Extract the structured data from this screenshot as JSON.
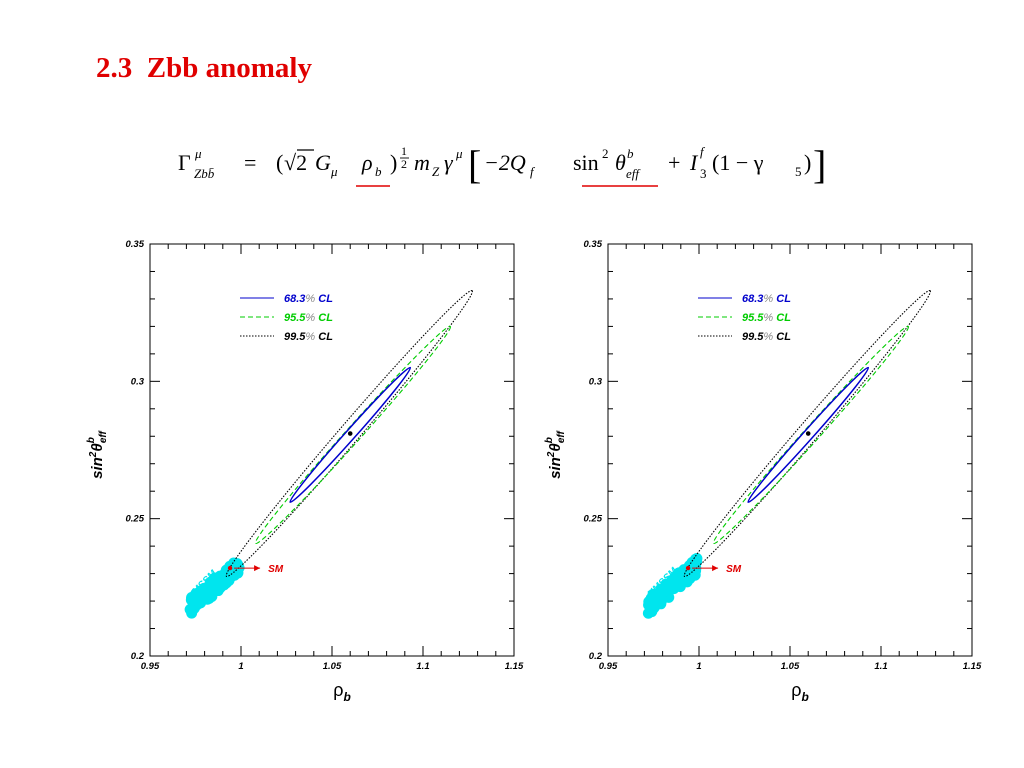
{
  "slide": {
    "title": "2.3  Zbb anomaly"
  },
  "equation": {
    "lhs": "Γ",
    "lhs_sup": "μ",
    "lhs_sub": "Zbb̄",
    "equals": "=",
    "open": "(",
    "sqrt": "√2",
    "G": "G",
    "G_sub": "μ",
    "rho": "ρ",
    "rho_sub": "b",
    "close": ")",
    "exp_num": "1",
    "exp_den": "2",
    "mZ": "m",
    "mZ_sub": "Z",
    "gamma": "γ",
    "gamma_sup": "μ",
    "lbracket": "[",
    "term1": "−2Q",
    "term1_sub": "f",
    "sin": "sin",
    "sin_sup": "2",
    "theta": "θ",
    "theta_sup": "b",
    "theta_sub": "eff",
    "plus": "+",
    "I": "I",
    "I_sup": "f",
    "I_sub": "3",
    "tail": "(1 − γ",
    "tail_sub": "5",
    "tail_close": ")",
    "rbracket": "]",
    "underline_color": "#e00000"
  },
  "colors": {
    "cl68": "#0000cc",
    "cl955": "#00cc00",
    "cl995": "#000000",
    "susy": "#00e5ee",
    "sm": "#e00000"
  },
  "chart_data": [
    {
      "type": "scatter",
      "xlabel": "ρ",
      "xlabel_sub": "b",
      "ylabel": "sin",
      "ylabel_sup": "2",
      "ylabel_theta": "θ",
      "ylabel_theta_sup": "b",
      "ylabel_theta_sub": "eff",
      "xlim": [
        0.95,
        1.15
      ],
      "ylim": [
        0.2,
        0.35
      ],
      "x_ticks": [
        "0.95",
        "1",
        "1.05",
        "1.1",
        "1.15"
      ],
      "y_ticks": [
        "0.2",
        "0.25",
        "0.3",
        "0.35"
      ],
      "legend_position": "top-left",
      "legend": [
        {
          "num": "68.3",
          "pct": "%",
          "cl": "CL",
          "color": "#0000cc",
          "style": "solid"
        },
        {
          "num": "95.5",
          "pct": "%",
          "cl": "CL",
          "color": "#00cc00",
          "style": "dashed"
        },
        {
          "num": "99.5",
          "pct": "%",
          "cl": "CL",
          "color": "#000000",
          "style": "dotted"
        }
      ],
      "best_fit": {
        "x": 1.06,
        "y": 0.281
      },
      "contours": [
        {
          "level": "99.5",
          "center": [
            1.06,
            0.281
          ],
          "tip_high": [
            1.127,
            0.333
          ],
          "tip_low": [
            0.992,
            0.229
          ],
          "half_width": 0.0055
        },
        {
          "level": "95.5",
          "center": [
            1.06,
            0.281
          ],
          "tip_high": [
            1.115,
            0.32
          ],
          "tip_low": [
            1.008,
            0.241
          ],
          "half_width": 0.0042
        },
        {
          "level": "68.3",
          "center": [
            1.06,
            0.281
          ],
          "tip_high": [
            1.093,
            0.305
          ],
          "tip_low": [
            1.027,
            0.256
          ],
          "half_width": 0.0027
        }
      ],
      "model_label": "MSSM",
      "model_points_range": {
        "x": [
          0.972,
          0.999
        ],
        "y": [
          0.218,
          0.233
        ]
      },
      "sm_label": "SM",
      "sm_point": {
        "x": 0.994,
        "y": 0.232
      }
    },
    {
      "type": "scatter",
      "xlabel": "ρ",
      "xlabel_sub": "b",
      "ylabel": "sin",
      "ylabel_sup": "2",
      "ylabel_theta": "θ",
      "ylabel_theta_sup": "b",
      "ylabel_theta_sub": "eff",
      "xlim": [
        0.95,
        1.15
      ],
      "ylim": [
        0.2,
        0.35
      ],
      "x_ticks": [
        "0.95",
        "1",
        "1.05",
        "1.1",
        "1.15"
      ],
      "y_ticks": [
        "0.2",
        "0.25",
        "0.3",
        "0.35"
      ],
      "legend_position": "top-left",
      "legend": [
        {
          "num": "68.3",
          "pct": "%",
          "cl": "CL",
          "color": "#0000cc",
          "style": "solid"
        },
        {
          "num": "95.5",
          "pct": "%",
          "cl": "CL",
          "color": "#00cc00",
          "style": "dashed"
        },
        {
          "num": "99.5",
          "pct": "%",
          "cl": "CL",
          "color": "#000000",
          "style": "dotted"
        }
      ],
      "best_fit": {
        "x": 1.06,
        "y": 0.281
      },
      "contours": [
        {
          "level": "99.5",
          "center": [
            1.06,
            0.281
          ],
          "tip_high": [
            1.127,
            0.333
          ],
          "tip_low": [
            0.992,
            0.229
          ],
          "half_width": 0.0055
        },
        {
          "level": "95.5",
          "center": [
            1.06,
            0.281
          ],
          "tip_high": [
            1.115,
            0.32
          ],
          "tip_low": [
            1.008,
            0.241
          ],
          "half_width": 0.0042
        },
        {
          "level": "68.3",
          "center": [
            1.06,
            0.281
          ],
          "tip_high": [
            1.093,
            0.305
          ],
          "tip_low": [
            1.027,
            0.256
          ],
          "half_width": 0.0027
        }
      ],
      "model_label": "NMSSM",
      "model_points_range": {
        "x": [
          0.972,
          0.999
        ],
        "y": [
          0.218,
          0.233
        ]
      },
      "sm_label": "SM",
      "sm_point": {
        "x": 0.994,
        "y": 0.232
      }
    }
  ]
}
